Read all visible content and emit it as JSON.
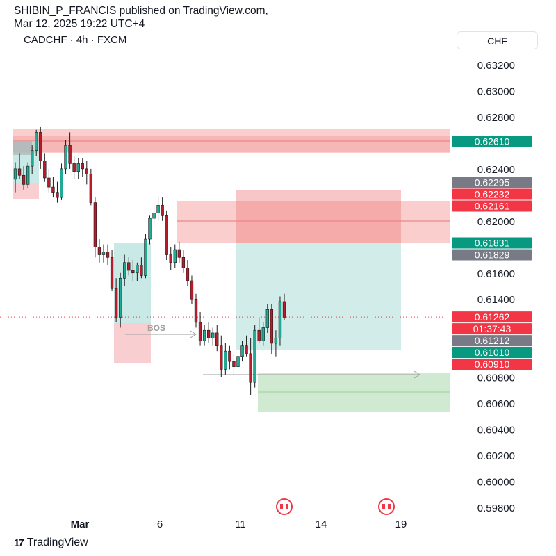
{
  "header": {
    "line1": "SHIBIN_P_FRANCIS published on TradingView.com,",
    "line2": "Mar 12, 2025 19:22 UTC+4",
    "symbol": "CADCHF · 4h · FXCM",
    "currency": "CHF"
  },
  "footer": {
    "logo": "17",
    "brand": "TradingView"
  },
  "colors": {
    "up": "#26a69a",
    "down": "#ef5350",
    "candle_up_fill": "#22ab94",
    "candle_down_fill": "#b71c2c",
    "supply_zone": "#f7a5a5",
    "demand_zone": "#c8e6c9",
    "long_target": "#b2dfdb",
    "long_stop": "#f8c5c8",
    "tag_green": "#089981",
    "tag_red": "#f23645",
    "tag_gray": "#787b86"
  },
  "annotations": {
    "bos_label": "BOS"
  },
  "chart_data": {
    "type": "candlestick",
    "y_axis_ticks": [
      "0.63200",
      "0.63000",
      "0.62800",
      "0.62400",
      "0.62000",
      "0.61600",
      "0.61400",
      "0.60800",
      "0.60600",
      "0.60400",
      "0.60200",
      "0.60000",
      "0.59800"
    ],
    "x_axis_ticks": [
      "Mar",
      "6",
      "11",
      "14",
      "19"
    ],
    "ylim": [
      0.5975,
      0.6345
    ],
    "price_tags": [
      {
        "value": "0.62610",
        "color": "green",
        "price": 0.6261
      },
      {
        "value": "0.62295",
        "color": "gray",
        "price": 0.62295
      },
      {
        "value": "0.62232",
        "color": "red",
        "price": 0.62232
      },
      {
        "value": "0.62161",
        "color": "red",
        "price": 0.62161
      },
      {
        "value": "0.61831",
        "color": "green",
        "price": 0.61831
      },
      {
        "value": "0.61829",
        "color": "gray",
        "price": 0.61829
      },
      {
        "value": "0.61262",
        "color": "red",
        "price": 0.61262
      },
      {
        "value": "01:37:43",
        "color": "red",
        "price": 0.6119
      },
      {
        "value": "0.61212",
        "color": "gray",
        "price": 0.61212
      },
      {
        "value": "0.61010",
        "color": "green",
        "price": 0.6101
      },
      {
        "value": "0.60910",
        "color": "red",
        "price": 0.6091
      }
    ],
    "current_price": 0.61262,
    "candles": [
      {
        "o": 0.6232,
        "h": 0.6245,
        "l": 0.6222,
        "c": 0.624
      },
      {
        "o": 0.624,
        "h": 0.6252,
        "l": 0.6232,
        "c": 0.6235
      },
      {
        "o": 0.6235,
        "h": 0.6242,
        "l": 0.6224,
        "c": 0.6228
      },
      {
        "o": 0.6228,
        "h": 0.6245,
        "l": 0.6225,
        "c": 0.6242
      },
      {
        "o": 0.6242,
        "h": 0.6258,
        "l": 0.6236,
        "c": 0.6254
      },
      {
        "o": 0.6254,
        "h": 0.627,
        "l": 0.625,
        "c": 0.6268
      },
      {
        "o": 0.6268,
        "h": 0.6272,
        "l": 0.624,
        "c": 0.6246
      },
      {
        "o": 0.6246,
        "h": 0.6252,
        "l": 0.623,
        "c": 0.6233
      },
      {
        "o": 0.6233,
        "h": 0.624,
        "l": 0.6222,
        "c": 0.6226
      },
      {
        "o": 0.6226,
        "h": 0.6234,
        "l": 0.6218,
        "c": 0.6222
      },
      {
        "o": 0.6222,
        "h": 0.623,
        "l": 0.6214,
        "c": 0.6218
      },
      {
        "o": 0.6218,
        "h": 0.6244,
        "l": 0.6216,
        "c": 0.624
      },
      {
        "o": 0.624,
        "h": 0.6262,
        "l": 0.6236,
        "c": 0.6258
      },
      {
        "o": 0.6258,
        "h": 0.6268,
        "l": 0.624,
        "c": 0.6244
      },
      {
        "o": 0.6244,
        "h": 0.625,
        "l": 0.6232,
        "c": 0.6238
      },
      {
        "o": 0.6238,
        "h": 0.6248,
        "l": 0.6232,
        "c": 0.6244
      },
      {
        "o": 0.6244,
        "h": 0.6248,
        "l": 0.6234,
        "c": 0.624
      },
      {
        "o": 0.624,
        "h": 0.6246,
        "l": 0.6228,
        "c": 0.6236
      },
      {
        "o": 0.6236,
        "h": 0.624,
        "l": 0.6212,
        "c": 0.6214
      },
      {
        "o": 0.6214,
        "h": 0.6218,
        "l": 0.6172,
        "c": 0.618
      },
      {
        "o": 0.618,
        "h": 0.6186,
        "l": 0.6168,
        "c": 0.6174
      },
      {
        "o": 0.6174,
        "h": 0.6182,
        "l": 0.6168,
        "c": 0.6176
      },
      {
        "o": 0.6176,
        "h": 0.6182,
        "l": 0.6166,
        "c": 0.6172
      },
      {
        "o": 0.6172,
        "h": 0.6178,
        "l": 0.6146,
        "c": 0.6148
      },
      {
        "o": 0.6148,
        "h": 0.6156,
        "l": 0.6122,
        "c": 0.6126
      },
      {
        "o": 0.6126,
        "h": 0.616,
        "l": 0.6118,
        "c": 0.6156
      },
      {
        "o": 0.6156,
        "h": 0.6174,
        "l": 0.615,
        "c": 0.6168
      },
      {
        "o": 0.6168,
        "h": 0.6172,
        "l": 0.6158,
        "c": 0.6162
      },
      {
        "o": 0.6162,
        "h": 0.617,
        "l": 0.6154,
        "c": 0.616
      },
      {
        "o": 0.616,
        "h": 0.6168,
        "l": 0.6154,
        "c": 0.6166
      },
      {
        "o": 0.6166,
        "h": 0.6172,
        "l": 0.6156,
        "c": 0.6158
      },
      {
        "o": 0.6158,
        "h": 0.619,
        "l": 0.6156,
        "c": 0.6186
      },
      {
        "o": 0.6186,
        "h": 0.6204,
        "l": 0.6182,
        "c": 0.6202
      },
      {
        "o": 0.6202,
        "h": 0.6212,
        "l": 0.6196,
        "c": 0.6206
      },
      {
        "o": 0.6206,
        "h": 0.6218,
        "l": 0.62,
        "c": 0.6212
      },
      {
        "o": 0.6212,
        "h": 0.6218,
        "l": 0.62,
        "c": 0.6204
      },
      {
        "o": 0.6204,
        "h": 0.6208,
        "l": 0.617,
        "c": 0.6174
      },
      {
        "o": 0.6174,
        "h": 0.618,
        "l": 0.6162,
        "c": 0.6168
      },
      {
        "o": 0.6168,
        "h": 0.6182,
        "l": 0.6164,
        "c": 0.6178
      },
      {
        "o": 0.6178,
        "h": 0.6184,
        "l": 0.6168,
        "c": 0.6172
      },
      {
        "o": 0.6172,
        "h": 0.6178,
        "l": 0.616,
        "c": 0.6164
      },
      {
        "o": 0.6164,
        "h": 0.617,
        "l": 0.615,
        "c": 0.6154
      },
      {
        "o": 0.6154,
        "h": 0.6158,
        "l": 0.6136,
        "c": 0.614
      },
      {
        "o": 0.614,
        "h": 0.6144,
        "l": 0.6118,
        "c": 0.6122
      },
      {
        "o": 0.6122,
        "h": 0.613,
        "l": 0.6104,
        "c": 0.6108
      },
      {
        "o": 0.6108,
        "h": 0.612,
        "l": 0.6104,
        "c": 0.6116
      },
      {
        "o": 0.6116,
        "h": 0.6122,
        "l": 0.6106,
        "c": 0.611
      },
      {
        "o": 0.611,
        "h": 0.6118,
        "l": 0.6104,
        "c": 0.6114
      },
      {
        "o": 0.6114,
        "h": 0.612,
        "l": 0.61,
        "c": 0.6104
      },
      {
        "o": 0.6104,
        "h": 0.6112,
        "l": 0.608,
        "c": 0.6086
      },
      {
        "o": 0.6086,
        "h": 0.6106,
        "l": 0.6082,
        "c": 0.61
      },
      {
        "o": 0.61,
        "h": 0.6104,
        "l": 0.6086,
        "c": 0.6092
      },
      {
        "o": 0.6092,
        "h": 0.6098,
        "l": 0.6082,
        "c": 0.6088
      },
      {
        "o": 0.6088,
        "h": 0.61,
        "l": 0.6084,
        "c": 0.6096
      },
      {
        "o": 0.6096,
        "h": 0.6108,
        "l": 0.6092,
        "c": 0.6104
      },
      {
        "o": 0.6104,
        "h": 0.6112,
        "l": 0.6096,
        "c": 0.6098
      },
      {
        "o": 0.6098,
        "h": 0.611,
        "l": 0.6066,
        "c": 0.6076
      },
      {
        "o": 0.6076,
        "h": 0.612,
        "l": 0.6072,
        "c": 0.6116
      },
      {
        "o": 0.6116,
        "h": 0.6126,
        "l": 0.6106,
        "c": 0.6108
      },
      {
        "o": 0.6108,
        "h": 0.6122,
        "l": 0.6104,
        "c": 0.6118
      },
      {
        "o": 0.6118,
        "h": 0.6136,
        "l": 0.6114,
        "c": 0.6132
      },
      {
        "o": 0.6132,
        "h": 0.6136,
        "l": 0.6098,
        "c": 0.6106
      },
      {
        "o": 0.6106,
        "h": 0.6116,
        "l": 0.6096,
        "c": 0.611
      },
      {
        "o": 0.611,
        "h": 0.6142,
        "l": 0.6104,
        "c": 0.6138
      },
      {
        "o": 0.6138,
        "h": 0.6144,
        "l": 0.6124,
        "c": 0.6126
      }
    ]
  }
}
